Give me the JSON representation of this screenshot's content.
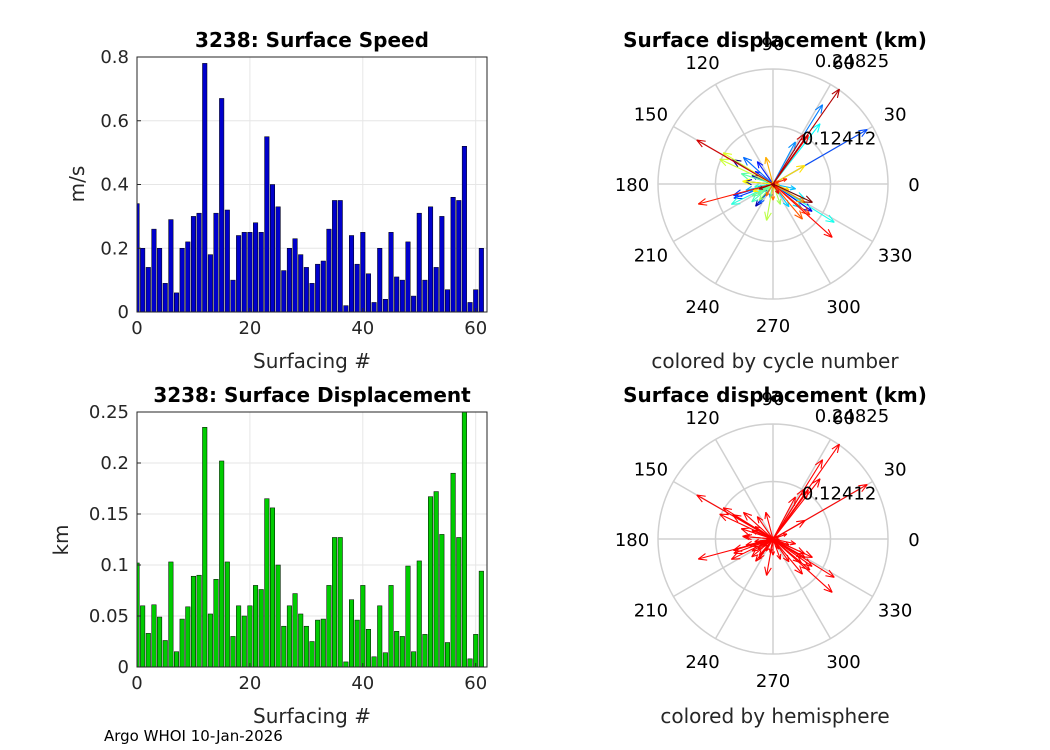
{
  "footer": "Argo WHOI 10-Jan-2026",
  "chart_data": [
    {
      "type": "bar",
      "title": "3238: Surface Speed",
      "xlabel": "Surfacing #",
      "ylabel": "m/s",
      "xlim": [
        0,
        62
      ],
      "ylim": [
        0,
        0.8
      ],
      "xticks": [
        "0",
        "20",
        "40",
        "60"
      ],
      "yticks": [
        "0",
        "0.2",
        "0.4",
        "0.6",
        "0.8"
      ],
      "color": "#0000cc",
      "x": [
        0,
        1,
        2,
        3,
        4,
        5,
        6,
        7,
        8,
        9,
        10,
        11,
        12,
        13,
        14,
        15,
        16,
        17,
        18,
        19,
        20,
        21,
        22,
        23,
        24,
        25,
        26,
        27,
        28,
        29,
        30,
        31,
        32,
        33,
        34,
        35,
        36,
        37,
        38,
        39,
        40,
        41,
        42,
        43,
        44,
        45,
        46,
        47,
        48,
        49,
        50,
        51,
        52,
        53,
        54,
        55,
        56,
        57,
        58,
        59,
        60,
        61
      ],
      "values": [
        0.34,
        0.2,
        0.14,
        0.26,
        0.2,
        0.09,
        0.29,
        0.06,
        0.2,
        0.22,
        0.3,
        0.31,
        0.78,
        0.18,
        0.31,
        0.67,
        0.32,
        0.1,
        0.24,
        0.25,
        0.25,
        0.28,
        0.25,
        0.55,
        0.4,
        0.33,
        0.13,
        0.2,
        0.23,
        0.18,
        0.14,
        0.09,
        0.15,
        0.16,
        0.26,
        0.35,
        0.35,
        0.02,
        0.24,
        0.15,
        0.25,
        0.12,
        0.03,
        0.2,
        0.04,
        0.25,
        0.11,
        0.1,
        0.22,
        0.05,
        0.31,
        0.1,
        0.33,
        0.14,
        0.3,
        0.07,
        0.36,
        0.35,
        0.52,
        0.03,
        0.07,
        0.2
      ]
    },
    {
      "type": "polar-arrows",
      "title": "Surface displacement (km)",
      "caption": "colored by cycle number",
      "angle_ticks": [
        "0",
        "30",
        "60",
        "90",
        "120",
        "150",
        "180",
        "210",
        "240",
        "270",
        "300",
        "330"
      ],
      "radial_ticks": [
        "0.12412",
        "0.24825"
      ],
      "rmax": 0.24825,
      "colormap": "cycle number",
      "angles_deg": [
        149,
        175,
        193,
        232,
        158,
        218,
        325,
        176,
        145,
        125,
        196,
        200,
        30,
        235,
        138,
        58,
        62,
        258,
        193,
        348,
        305,
        320,
        335,
        52,
        328,
        206,
        188,
        220,
        162,
        210,
        215,
        300,
        230,
        290,
        260,
        155,
        148,
        80,
        175,
        200,
        30,
        340,
        290,
        105,
        355,
        330,
        270,
        240,
        310,
        25,
        320,
        20,
        195,
        318,
        54,
        300,
        150,
        58,
        55,
        295,
        200,
        335
      ],
      "lengths_km": [
        0.102,
        0.06,
        0.033,
        0.061,
        0.049,
        0.026,
        0.103,
        0.015,
        0.047,
        0.059,
        0.089,
        0.09,
        0.235,
        0.052,
        0.086,
        0.202,
        0.103,
        0.03,
        0.06,
        0.05,
        0.06,
        0.08,
        0.076,
        0.165,
        0.156,
        0.1,
        0.04,
        0.06,
        0.072,
        0.052,
        0.04,
        0.025,
        0.046,
        0.047,
        0.08,
        0.127,
        0.127,
        0.005,
        0.066,
        0.046,
        0.08,
        0.037,
        0.01,
        0.06,
        0.014,
        0.08,
        0.035,
        0.03,
        0.099,
        0.015,
        0.104,
        0.032,
        0.167,
        0.172,
        0.13,
        0.024,
        0.19,
        0.127,
        0.25,
        0.008,
        0.032,
        0.094
      ]
    },
    {
      "type": "bar",
      "title": "3238: Surface Displacement",
      "xlabel": "Surfacing #",
      "ylabel": "km",
      "xlim": [
        0,
        62
      ],
      "ylim": [
        0,
        0.25
      ],
      "xticks": [
        "0",
        "20",
        "40",
        "60"
      ],
      "yticks": [
        "0",
        "0.05",
        "0.1",
        "0.15",
        "0.2",
        "0.25"
      ],
      "color": "#00cc00",
      "x": [
        0,
        1,
        2,
        3,
        4,
        5,
        6,
        7,
        8,
        9,
        10,
        11,
        12,
        13,
        14,
        15,
        16,
        17,
        18,
        19,
        20,
        21,
        22,
        23,
        24,
        25,
        26,
        27,
        28,
        29,
        30,
        31,
        32,
        33,
        34,
        35,
        36,
        37,
        38,
        39,
        40,
        41,
        42,
        43,
        44,
        45,
        46,
        47,
        48,
        49,
        50,
        51,
        52,
        53,
        54,
        55,
        56,
        57,
        58,
        59,
        60,
        61
      ],
      "values": [
        0.102,
        0.06,
        0.033,
        0.061,
        0.049,
        0.026,
        0.103,
        0.015,
        0.047,
        0.059,
        0.089,
        0.09,
        0.235,
        0.052,
        0.086,
        0.202,
        0.103,
        0.03,
        0.06,
        0.05,
        0.06,
        0.08,
        0.076,
        0.165,
        0.156,
        0.1,
        0.04,
        0.06,
        0.072,
        0.052,
        0.04,
        0.025,
        0.046,
        0.047,
        0.08,
        0.127,
        0.127,
        0.005,
        0.066,
        0.046,
        0.08,
        0.037,
        0.01,
        0.06,
        0.014,
        0.08,
        0.035,
        0.03,
        0.099,
        0.015,
        0.104,
        0.032,
        0.167,
        0.172,
        0.13,
        0.024,
        0.19,
        0.127,
        0.25,
        0.008,
        0.032,
        0.094
      ]
    },
    {
      "type": "polar-arrows",
      "title": "Surface displacement (km)",
      "caption": "colored by hemisphere",
      "angle_ticks": [
        "0",
        "30",
        "60",
        "90",
        "120",
        "150",
        "180",
        "210",
        "240",
        "270",
        "300",
        "330"
      ],
      "radial_ticks": [
        "0.12412",
        "0.24825"
      ],
      "rmax": 0.24825,
      "color": "#ff0000"
    }
  ]
}
